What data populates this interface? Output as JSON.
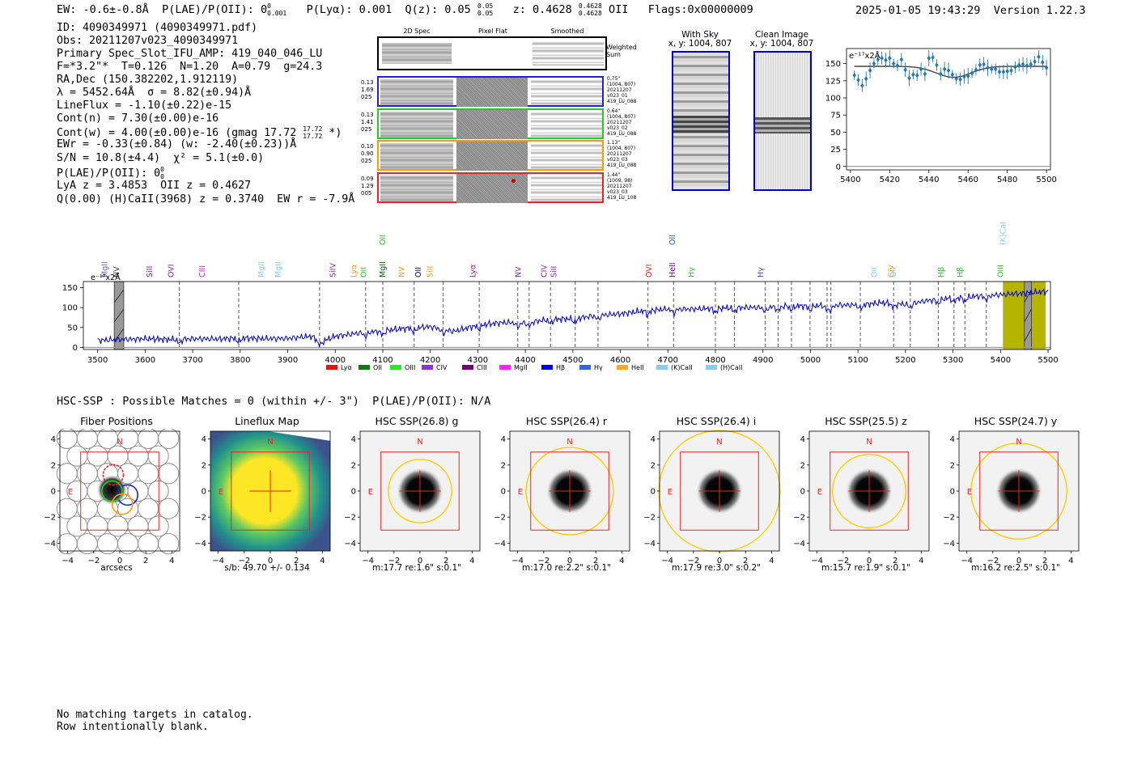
{
  "header": {
    "ew": "EW: -0.6±-0.8Å",
    "plae": "P(LAE)/P(OII): 0",
    "plae_sup": "0",
    "plae_sub": "0.001",
    "plya": "P(Lyα): 0.001",
    "qz": "Q(z): 0.05",
    "qz_sup": "0.05",
    "qz_sub": "0.05",
    "z": "z: 0.4628",
    "z_sup": "0.4628",
    "z_sub": "0.4628",
    "z_line": "OII",
    "flags": "Flags:0x00000009",
    "timestamp": "2025-01-05 19:43:29",
    "version": "Version 1.22.3"
  },
  "info": [
    "ID: 4090349971 (4090349971.pdf)",
    "Obs: 20211207v023_4090349971",
    "Primary Spec_Slot_IFU_AMP: 419_040_046_LU",
    "F=*3.2\"*  T=0.126  N=1.20  A=0.79  g=24.3",
    "RA,Dec (150.382202,1.912119)",
    "λ = 5452.64Å  σ = 8.82(±0.94)Å",
    "LineFlux = -1.10(±0.22)e-15",
    "Cont(n) = 7.30(±0.00)e-16",
    "Cont(w) = 4.00(±0.00)e-16 (gmag 17.72",
    "EWr = -0.33(±0.84) (w: -2.40(±0.23))Å",
    "S/N = 10.8(±4.4)  χ² = 5.1(±0.0)",
    "P(LAE)/P(OII): 0",
    "LyA z = 3.4853  OII z = 0.4627",
    "Q(0.00) (H)CaII(3968) z = 0.3740  EW r = -7.9Å"
  ],
  "gmag_sup": "17.72",
  "gmag_sub": "17.72",
  "gmag_tail": "*)",
  "plae2_sup": "0",
  "plae2_sub": "0",
  "cutouts": {
    "col_2d": "2D Spec",
    "col_flat": "Pixel Flat",
    "col_smooth": "Smoothed",
    "weighted": "Weighted",
    "sum": "Sum",
    "rows": [
      {
        "left": [
          "0.13",
          "1.69",
          "025"
        ],
        "right": [
          "0.75\"",
          "(1004, 807)",
          "20211207",
          "v023_01",
          "419_LU_088"
        ],
        "color": "#2222cc"
      },
      {
        "left": [
          "0.13",
          "1.41",
          "025"
        ],
        "right": [
          "0.64\"",
          "(1004, 807)",
          "20211207",
          "v023_02",
          "419_LU_088"
        ],
        "color": "#22cc22"
      },
      {
        "left": [
          "0.10",
          "0.90",
          "025"
        ],
        "right": [
          "1.13\"",
          "(1004, 807)",
          "20211207",
          "v023_03",
          "419_LU_088"
        ],
        "color": "#ff9900"
      },
      {
        "left": [
          "0.09",
          "1.29",
          "005"
        ],
        "right": [
          "1.44\"",
          "(1009, 98)",
          "20211207",
          "v023_03",
          "419_LU_108"
        ],
        "color": "#ee2222"
      }
    ]
  },
  "sky": {
    "with_sky": "With Sky",
    "with_sky_xy": "x, y: 1004, 807",
    "clean": "Clean Image",
    "clean_xy": "x, y: 1004, 807"
  },
  "colors": {
    "blue": "#0000cc",
    "point": "#1f77b4",
    "fit": "#444444",
    "red": "#ee2222",
    "gold": "#ffcc00",
    "olive": "#b5b500"
  },
  "chart_data": [
    {
      "type": "scatter",
      "name": "zoom-line-fit",
      "unit_label": "e⁻¹⁷x2Å",
      "xlim": [
        5398,
        5502
      ],
      "ylim": [
        -5,
        172
      ],
      "xticks": [
        "5400",
        "5420",
        "5440",
        "5460",
        "5480",
        "5500"
      ],
      "xtick_values": [
        5400,
        5420,
        5440,
        5460,
        5480,
        5500
      ],
      "yticks": [
        "0",
        "25",
        "50",
        "75",
        "100",
        "125",
        "150"
      ],
      "ytick_values": [
        0,
        25,
        50,
        75,
        100,
        125,
        150
      ],
      "x": [
        5402,
        5404,
        5406,
        5408,
        5410,
        5412,
        5414,
        5416,
        5418,
        5420,
        5422,
        5424,
        5426,
        5428,
        5430,
        5432,
        5434,
        5436,
        5438,
        5440,
        5442,
        5444,
        5446,
        5448,
        5450,
        5452,
        5454,
        5456,
        5458,
        5460,
        5462,
        5464,
        5466,
        5468,
        5470,
        5472,
        5474,
        5476,
        5478,
        5480,
        5482,
        5484,
        5486,
        5488,
        5490,
        5492,
        5494,
        5496,
        5498,
        5500
      ],
      "y": [
        133,
        126,
        118,
        128,
        140,
        150,
        156,
        158,
        155,
        158,
        150,
        147,
        156,
        141,
        129,
        134,
        133,
        142,
        135,
        158,
        159,
        148,
        135,
        142,
        140,
        134,
        128,
        127,
        131,
        132,
        136,
        141,
        148,
        149,
        144,
        142,
        142,
        138,
        138,
        139,
        140,
        145,
        148,
        149,
        147,
        149,
        153,
        160,
        152,
        144
      ],
      "fit_level": 146,
      "fit_dip": 16,
      "fit_center": 5452.6,
      "fit_sigma": 8.8
    },
    {
      "type": "line",
      "name": "full-spectrum",
      "unit_label": "e⁻¹⁷x2Å",
      "xlim": [
        3470,
        5505
      ],
      "ylim": [
        -5,
        165
      ],
      "xticks": [
        "3500",
        "3600",
        "3700",
        "3800",
        "3900",
        "4000",
        "4100",
        "4200",
        "4300",
        "4400",
        "4500",
        "4600",
        "4700",
        "4800",
        "4900",
        "5000",
        "5100",
        "5200",
        "5300",
        "5400",
        "5500"
      ],
      "xtick_values": [
        3500,
        3600,
        3700,
        3800,
        3900,
        4000,
        4100,
        4200,
        4300,
        4400,
        4500,
        4600,
        4700,
        4800,
        4900,
        5000,
        5100,
        5200,
        5300,
        5400,
        5500
      ],
      "yticks": [
        "0",
        "50",
        "100",
        "150"
      ],
      "ytick_values": [
        0,
        50,
        100,
        150
      ],
      "x": [
        3500,
        3550,
        3600,
        3650,
        3700,
        3750,
        3800,
        3850,
        3900,
        3950,
        3970,
        4000,
        4050,
        4100,
        4150,
        4200,
        4250,
        4300,
        4350,
        4400,
        4450,
        4500,
        4550,
        4600,
        4650,
        4700,
        4750,
        4800,
        4850,
        4900,
        4950,
        5000,
        5050,
        5100,
        5150,
        5200,
        5250,
        5300,
        5350,
        5400,
        5450,
        5500
      ],
      "y": [
        18,
        20,
        22,
        20,
        22,
        21,
        24,
        22,
        23,
        28,
        14,
        28,
        36,
        42,
        48,
        52,
        40,
        56,
        62,
        62,
        70,
        72,
        80,
        84,
        92,
        96,
        96,
        98,
        100,
        100,
        104,
        104,
        106,
        106,
        112,
        108,
        118,
        124,
        128,
        132,
        136,
        140
      ],
      "dashed_lines": [
        3672,
        3797,
        3967,
        4064,
        4100,
        4166,
        4227,
        4303,
        4384,
        4408,
        4453,
        4505,
        4553,
        4658,
        4712,
        4800,
        4840,
        4905,
        4932,
        4960,
        4999,
        5035,
        5043,
        5105,
        5175,
        5210,
        5269,
        5302,
        5325,
        5370
      ],
      "shaded": [
        {
          "x0": 5405,
          "x1": 5465,
          "color": "#b5b500"
        },
        {
          "x0": 5465,
          "x1": 5495,
          "color": "#b5b500"
        }
      ],
      "gray_boxes": [
        {
          "x0": 3535,
          "x1": 3555
        },
        {
          "x0": 5450,
          "x1": 5465
        }
      ],
      "line_labels": [
        {
          "label": "MgII",
          "x": 3515,
          "color": "#6666cc"
        },
        {
          "label": "NV",
          "x": 3540,
          "color": "#333333"
        },
        {
          "label": "SiII",
          "x": 3610,
          "color": "#8822aa"
        },
        {
          "label": "OVI",
          "x": 3655,
          "color": "#8822aa"
        },
        {
          "label": "CIII",
          "x": 3720,
          "color": "#dd22dd"
        },
        {
          "label": "MgII",
          "x": 3845,
          "color": "#88ccee"
        },
        {
          "label": "MgII",
          "x": 3880,
          "color": "#88ccee"
        },
        {
          "label": "SiIV",
          "x": 3995,
          "color": "#8822aa"
        },
        {
          "label": "Lyα",
          "x": 4040,
          "color": "#ff9900"
        },
        {
          "label": "OII",
          "x": 4060,
          "color": "#22cc22"
        },
        {
          "label": "MgII",
          "x": 4100,
          "color": "#006600"
        },
        {
          "label": "OII",
          "x": 4100,
          "color": "#22cc22",
          "high": true
        },
        {
          "label": "NV",
          "x": 4140,
          "color": "#ff9900"
        },
        {
          "label": "OII",
          "x": 4175,
          "color": "#000088"
        },
        {
          "label": "SiII",
          "x": 4200,
          "color": "#ff9900"
        },
        {
          "label": "Lyα",
          "x": 4290,
          "color": "#8822aa"
        },
        {
          "label": "NV",
          "x": 4385,
          "color": "#8822aa"
        },
        {
          "label": "CIV",
          "x": 4440,
          "color": "#8822aa"
        },
        {
          "label": "SiII",
          "x": 4460,
          "color": "#8822aa"
        },
        {
          "label": "OVI",
          "x": 4660,
          "color": "#ee2222"
        },
        {
          "label": "HeII",
          "x": 4710,
          "color": "#880088"
        },
        {
          "label": "OII",
          "x": 4710,
          "color": "#3355cc",
          "high": true
        },
        {
          "label": "Hγ",
          "x": 4750,
          "color": "#22cc22"
        },
        {
          "label": "Hγ",
          "x": 4895,
          "color": "#3355cc"
        },
        {
          "label": "OII",
          "x": 5135,
          "color": "#88ccee"
        },
        {
          "label": "CIV",
          "x": 5170,
          "color": "#ff9900"
        },
        {
          "label": "OII",
          "x": 5175,
          "color": "#88ccee"
        },
        {
          "label": "Hβ",
          "x": 5275,
          "color": "#22cc22"
        },
        {
          "label": "Hβ",
          "x": 5315,
          "color": "#22cc22"
        },
        {
          "label": "OIII",
          "x": 5400,
          "color": "#22cc22"
        },
        {
          "label": "(K)CaII",
          "x": 5405,
          "color": "#88ccee",
          "high": true
        }
      ],
      "legend": [
        {
          "label": "Lyα",
          "color": "#ee1111"
        },
        {
          "label": "OII",
          "color": "#117711"
        },
        {
          "label": "OIII",
          "color": "#22ee22"
        },
        {
          "label": "CIV",
          "color": "#8833dd"
        },
        {
          "label": "CIII",
          "color": "#770077"
        },
        {
          "label": "MgII",
          "color": "#ff22ff"
        },
        {
          "label": "Hβ",
          "color": "#0000ee"
        },
        {
          "label": "Hγ",
          "color": "#3366ee"
        },
        {
          "label": "HeII",
          "color": "#ffaa22"
        },
        {
          "label": "(K)CaII",
          "color": "#88ccee"
        },
        {
          "label": "(H)CaII",
          "color": "#88ccee"
        }
      ]
    }
  ],
  "hsc": {
    "summary": "HSC-SSP : Possible Matches = 0 (within +/- 3\")  P(LAE)/P(OII): N/A",
    "axis_ticks": [
      "4",
      "2",
      "0",
      "−2",
      "−4"
    ],
    "xticks": [
      "−4",
      "−2",
      "0",
      "2",
      "4"
    ],
    "north": "N",
    "east": "E",
    "panels": [
      {
        "title": "Fiber Positions",
        "caption": "arcsecs",
        "kind": "fibers"
      },
      {
        "title": "Lineflux Map",
        "caption": "s/b: 49.70 +/- 0.134",
        "kind": "flux"
      },
      {
        "title": "HSC SSP(26.8) g",
        "caption": "m:17.7  re:1.6\"  s:0.1\"",
        "kind": "img",
        "ring": 0.45
      },
      {
        "title": "HSC SSP(26.4) r",
        "caption": "m:17.0  re:2.2\"  s:0.1\"",
        "kind": "img",
        "ring": 0.62
      },
      {
        "title": "HSC SSP(26.4) i",
        "caption": "m:17.9  re:3.0\"  s:0.2\"",
        "kind": "img",
        "ring": 0.86
      },
      {
        "title": "HSC SSP(25.5) z",
        "caption": "m:15.7  re:1.9\"  s:0.1\"",
        "kind": "img",
        "ring": 0.52
      },
      {
        "title": "HSC SSP(24.7) y",
        "caption": "m:16.2  re:2.5\"  s:0.1\"",
        "kind": "img",
        "ring": 0.68
      }
    ]
  },
  "footer": {
    "line1": "No matching targets in catalog.",
    "line2": "Row intentionally blank."
  }
}
